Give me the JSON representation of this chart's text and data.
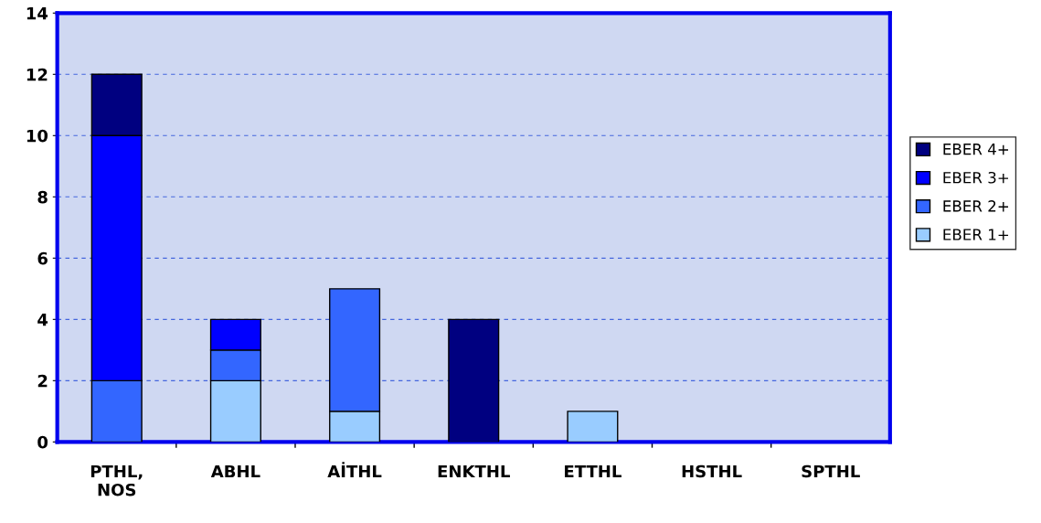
{
  "chart_data": {
    "type": "bar",
    "stacked": true,
    "categories": [
      "PTHL, NOS",
      "ABHL",
      "AİTHL",
      "ENKTHL",
      "ETTHL",
      "HSTHL",
      "SPTHL"
    ],
    "series": [
      {
        "name": "EBER 1+",
        "color": "#99ccff",
        "values": [
          0,
          2,
          1,
          0,
          1,
          0,
          0
        ]
      },
      {
        "name": "EBER 2+",
        "color": "#3366ff",
        "values": [
          2,
          1,
          4,
          0,
          0,
          0,
          0
        ]
      },
      {
        "name": "EBER 3+",
        "color": "#0000ff",
        "values": [
          8,
          1,
          0,
          0,
          0,
          0,
          0
        ]
      },
      {
        "name": "EBER 4+",
        "color": "#000080",
        "values": [
          2,
          0,
          0,
          4,
          0,
          0,
          0
        ]
      }
    ],
    "ylim": [
      0,
      14
    ],
    "yticks": [
      0,
      2,
      4,
      6,
      8,
      10,
      12,
      14
    ],
    "grid": "y",
    "legend": "right"
  }
}
